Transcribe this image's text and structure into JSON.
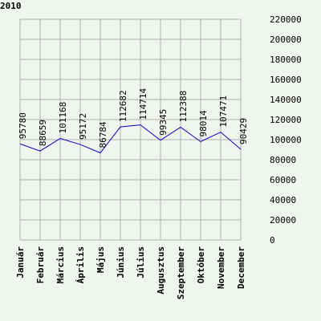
{
  "chart_data": {
    "type": "line",
    "title": "2010",
    "xlabel": "",
    "ylabel": "",
    "categories": [
      "Január",
      "Február",
      "Március",
      "Április",
      "Május",
      "Június",
      "Július",
      "Augusztus",
      "Szeptember",
      "Október",
      "November",
      "December"
    ],
    "series": [
      {
        "values": [
          95780,
          88659,
          101168,
          95172,
          86784,
          112682,
          114714,
          99345,
          112388,
          98014,
          107471,
          90429
        ]
      }
    ],
    "ylim": [
      0,
      220000
    ],
    "yticks": [
      0,
      20000,
      40000,
      60000,
      80000,
      100000,
      120000,
      140000,
      160000,
      180000,
      200000,
      220000
    ],
    "grid": true,
    "line_color": "#0000cc",
    "grid_color": "#b0b0b0",
    "background": "#f0f5ee"
  }
}
